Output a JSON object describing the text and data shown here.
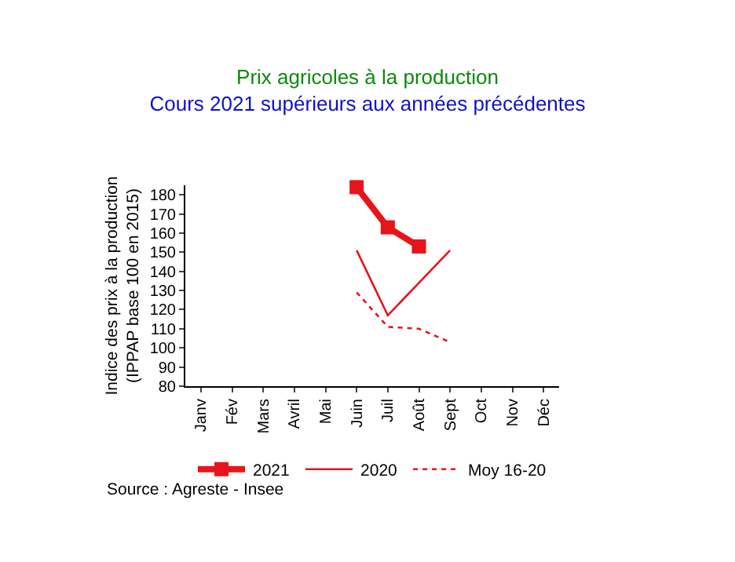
{
  "chart_data": {
    "type": "line",
    "title": "Prix agricoles à la production",
    "subtitle": "Cours 2021 supérieurs aux années précédentes",
    "ylabel": "Indice des prix à la production\n(IPPAP base 100 en 2015)",
    "categories": [
      "Janv",
      "Fév",
      "Mars",
      "Avril",
      "Mai",
      "Juin",
      "Juil",
      "Août",
      "Sept",
      "Oct",
      "Nov",
      "Déc"
    ],
    "series": [
      {
        "name": "2021",
        "color": "#e8141b",
        "marker": "square",
        "line_style": "solid",
        "values": [
          null,
          null,
          null,
          null,
          null,
          184,
          163,
          153,
          null,
          null,
          null,
          null
        ]
      },
      {
        "name": "2020",
        "color": "#e8141b",
        "marker": "none",
        "line_style": "solid",
        "values": [
          null,
          null,
          null,
          null,
          null,
          151,
          117,
          134,
          151,
          null,
          null,
          null
        ]
      },
      {
        "name": "Moy 16-20",
        "color": "#e8141b",
        "marker": "none",
        "line_style": "dotted",
        "values": [
          null,
          null,
          null,
          null,
          null,
          129,
          111,
          110,
          103,
          null,
          null,
          null
        ]
      }
    ],
    "ylim": [
      80,
      185
    ],
    "yticks": [
      80,
      90,
      100,
      110,
      120,
      130,
      140,
      150,
      160,
      170,
      180
    ],
    "legend": "bottom",
    "annotations": [
      "Source : Agreste - Insee"
    ]
  }
}
